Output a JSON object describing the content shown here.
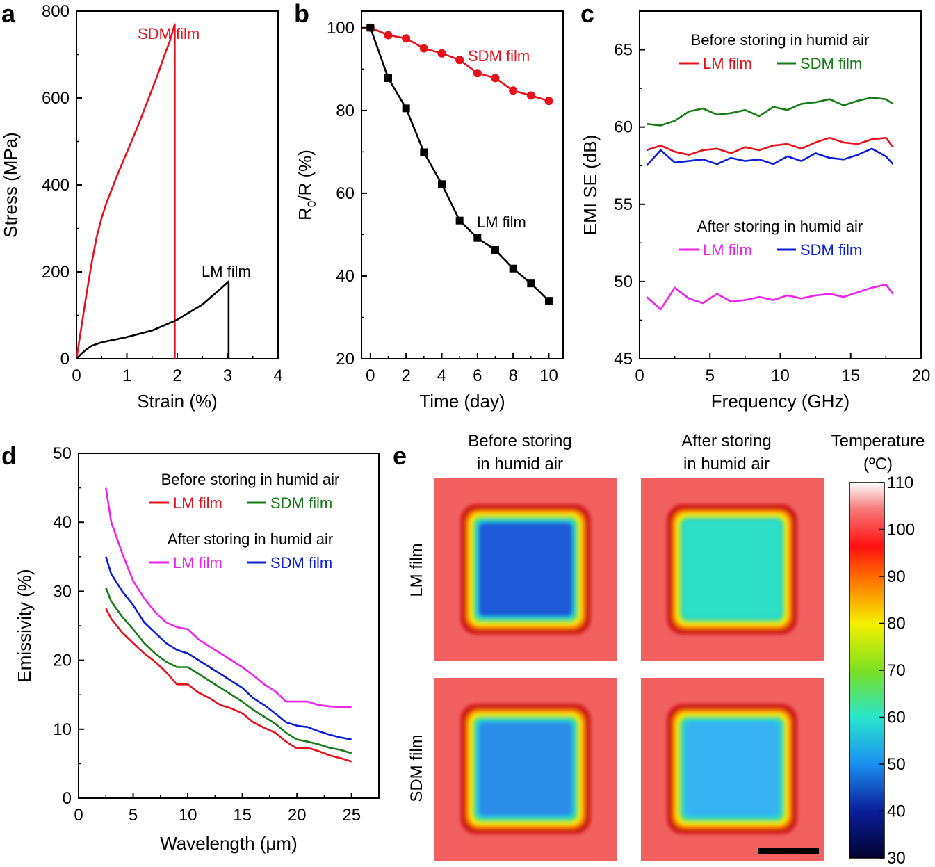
{
  "panel_letters": {
    "a": "a",
    "b": "b",
    "c": "c",
    "d": "d",
    "e": "e"
  },
  "colors": {
    "red": "#e8101a",
    "black": "#000000",
    "green": "#177a17",
    "blue": "#0b1fd6",
    "magenta": "#ee22ee"
  },
  "chart_data": [
    {
      "panel": "a",
      "type": "line",
      "xlabel": "Strain (%)",
      "ylabel": "Stress (MPa)",
      "xlim": [
        0,
        4
      ],
      "ylim": [
        0,
        800
      ],
      "xticks": [
        0,
        1,
        2,
        3,
        4
      ],
      "yticks": [
        0,
        200,
        400,
        600,
        800
      ],
      "grid": false,
      "series": [
        {
          "name": "SDM film",
          "color": "#e8101a",
          "x": [
            0,
            0.1,
            0.2,
            0.3,
            0.4,
            0.5,
            0.6,
            0.8,
            1.0,
            1.2,
            1.4,
            1.6,
            1.75,
            1.85,
            1.95,
            1.95
          ],
          "y": [
            0,
            75,
            150,
            220,
            280,
            325,
            360,
            420,
            475,
            530,
            590,
            650,
            700,
            730,
            770,
            0
          ]
        },
        {
          "name": "LM film",
          "color": "#000000",
          "x": [
            0,
            0.1,
            0.2,
            0.3,
            0.5,
            0.8,
            1.0,
            1.5,
            2.0,
            2.5,
            2.8,
            3.02,
            3.02
          ],
          "y": [
            0,
            12,
            22,
            30,
            38,
            45,
            50,
            65,
            90,
            125,
            155,
            178,
            0
          ]
        }
      ],
      "annotations": [
        "SDM film",
        "LM film"
      ]
    },
    {
      "panel": "b",
      "type": "line",
      "xlabel": "Time (day)",
      "ylabel_main": "R",
      "ylabel_sub": "0",
      "ylabel_rest": "/R (%)",
      "xlim": [
        -0.5,
        10.8
      ],
      "ylim": [
        20,
        104
      ],
      "xticks": [
        0,
        2,
        4,
        6,
        8,
        10
      ],
      "yticks": [
        20,
        40,
        60,
        80,
        100
      ],
      "grid": false,
      "series": [
        {
          "name": "SDM film",
          "color": "#e8101a",
          "marker": "circle",
          "x": [
            0,
            1,
            2,
            3,
            4,
            5,
            6,
            7,
            8,
            9,
            10
          ],
          "y": [
            100,
            98.2,
            97.4,
            95.0,
            93.8,
            92.2,
            89.0,
            87.8,
            84.8,
            83.6,
            82.3
          ]
        },
        {
          "name": "LM film",
          "color": "#000000",
          "marker": "square",
          "x": [
            0,
            1,
            2,
            3,
            4,
            5,
            6,
            7,
            8,
            9,
            10
          ],
          "y": [
            100,
            87.8,
            80.5,
            69.9,
            62.2,
            53.4,
            49.2,
            46.3,
            41.8,
            38.2,
            34.0
          ]
        }
      ],
      "annotations": [
        "SDM film",
        "LM film"
      ]
    },
    {
      "panel": "c",
      "type": "line",
      "xlabel": "Frequency (GHz)",
      "ylabel": "EMI SE (dB)",
      "xlim": [
        0,
        20
      ],
      "ylim": [
        45,
        67.5
      ],
      "xticks": [
        0,
        5,
        10,
        15,
        20
      ],
      "yticks": [
        45,
        50,
        55,
        60,
        65
      ],
      "grid": false,
      "legend_groups": [
        {
          "title": "Before storing in humid air",
          "entries": [
            {
              "label": "LM film",
              "color": "#e8101a"
            },
            {
              "label": "SDM film",
              "color": "#177a17"
            }
          ]
        },
        {
          "title": "After storing in humid air",
          "entries": [
            {
              "label": "LM film",
              "color": "#ee22ee"
            },
            {
              "label": "SDM film",
              "color": "#0b1fd6"
            }
          ]
        }
      ],
      "series": [
        {
          "name": "LM film (before)",
          "color": "#e8101a",
          "x": [
            0.5,
            1.5,
            2.5,
            3.5,
            4.5,
            5.5,
            6.5,
            7.5,
            8.5,
            9.5,
            10.5,
            11.5,
            12.5,
            13.5,
            14.5,
            15.5,
            16.5,
            17.5,
            18
          ],
          "y": [
            58.5,
            58.8,
            58.4,
            58.2,
            58.5,
            58.6,
            58.3,
            58.7,
            58.5,
            58.8,
            58.9,
            58.6,
            59.0,
            59.3,
            59.0,
            58.9,
            59.2,
            59.3,
            58.7
          ]
        },
        {
          "name": "SDM film (before)",
          "color": "#177a17",
          "x": [
            0.5,
            1.5,
            2.5,
            3.5,
            4.5,
            5.5,
            6.5,
            7.5,
            8.5,
            9.5,
            10.5,
            11.5,
            12.5,
            13.5,
            14.5,
            15.5,
            16.5,
            17.5,
            18
          ],
          "y": [
            60.2,
            60.1,
            60.4,
            61.0,
            61.2,
            60.8,
            60.9,
            61.1,
            60.7,
            61.3,
            61.1,
            61.5,
            61.6,
            61.8,
            61.4,
            61.7,
            61.9,
            61.8,
            61.5
          ]
        },
        {
          "name": "SDM film (after)",
          "color": "#0b1fd6",
          "x": [
            0.5,
            1.5,
            2.5,
            3.5,
            4.5,
            5.5,
            6.5,
            7.5,
            8.5,
            9.5,
            10.5,
            11.5,
            12.5,
            13.5,
            14.5,
            15.5,
            16.5,
            17.5,
            18
          ],
          "y": [
            57.5,
            58.5,
            57.7,
            57.8,
            57.9,
            57.6,
            58.0,
            57.8,
            57.9,
            57.6,
            58.1,
            57.8,
            58.3,
            58.0,
            57.9,
            58.2,
            58.6,
            58.1,
            57.6
          ]
        },
        {
          "name": "LM film (after)",
          "color": "#ee22ee",
          "x": [
            0.5,
            1.5,
            2.5,
            3.5,
            4.5,
            5.5,
            6.5,
            7.5,
            8.5,
            9.5,
            10.5,
            11.5,
            12.5,
            13.5,
            14.5,
            15.5,
            16.5,
            17.5,
            18
          ],
          "y": [
            49.0,
            48.2,
            49.6,
            48.9,
            48.6,
            49.2,
            48.7,
            48.8,
            49.0,
            48.8,
            49.1,
            48.9,
            49.1,
            49.2,
            49.0,
            49.3,
            49.6,
            49.8,
            49.2
          ]
        }
      ]
    },
    {
      "panel": "d",
      "type": "line",
      "xlabel": "Wavelength (μm)",
      "ylabel": "Emissivity (%)",
      "xlim": [
        0,
        27.5
      ],
      "ylim": [
        0,
        50
      ],
      "xticks": [
        0,
        5,
        10,
        15,
        20,
        25
      ],
      "yticks": [
        0,
        10,
        20,
        30,
        40,
        50
      ],
      "grid": false,
      "legend_groups": [
        {
          "title": "Before storing in humid air",
          "entries": [
            {
              "label": "LM film",
              "color": "#e8101a"
            },
            {
              "label": "SDM film",
              "color": "#177a17"
            }
          ]
        },
        {
          "title": "After storing in humid air",
          "entries": [
            {
              "label": "LM film",
              "color": "#ee22ee"
            },
            {
              "label": "SDM film",
              "color": "#0b1fd6"
            }
          ]
        }
      ],
      "series": [
        {
          "name": "LM film (after)",
          "color": "#ee22ee",
          "x": [
            2.5,
            3,
            4,
            5,
            6,
            7,
            8,
            9,
            10,
            11,
            12,
            13,
            14,
            15,
            16,
            17,
            18,
            19,
            20,
            21,
            22,
            23,
            24,
            25
          ],
          "y": [
            45,
            40,
            35.5,
            31.5,
            29,
            27,
            25.5,
            24.8,
            24.5,
            23,
            22,
            21,
            20,
            19,
            17.8,
            16.5,
            15.5,
            14,
            14,
            14,
            13.5,
            13.3,
            13.2,
            13.2
          ]
        },
        {
          "name": "SDM film (after)",
          "color": "#0b1fd6",
          "x": [
            2.5,
            3,
            4,
            5,
            6,
            7,
            8,
            9,
            10,
            11,
            12,
            13,
            14,
            15,
            16,
            17,
            18,
            19,
            20,
            21,
            22,
            23,
            24,
            25
          ],
          "y": [
            35,
            32.5,
            30,
            28,
            25.5,
            24,
            22.5,
            21.5,
            21,
            20,
            19,
            18,
            17,
            16,
            14.5,
            13.5,
            12.3,
            11,
            10.5,
            10.3,
            9.7,
            9.2,
            8.8,
            8.5
          ]
        },
        {
          "name": "SDM film (before)",
          "color": "#177a17",
          "x": [
            2.5,
            3,
            4,
            5,
            6,
            7,
            8,
            9,
            10,
            11,
            12,
            13,
            14,
            15,
            16,
            17,
            18,
            19,
            20,
            21,
            22,
            23,
            24,
            25
          ],
          "y": [
            30.5,
            28.5,
            26.3,
            24.5,
            22.5,
            21,
            19.8,
            19,
            19,
            18,
            17,
            16,
            15,
            14,
            12.8,
            11.8,
            10.8,
            9.5,
            8.5,
            8.2,
            7.8,
            7.3,
            7,
            6.5
          ]
        },
        {
          "name": "LM film (before)",
          "color": "#e8101a",
          "x": [
            2.5,
            3,
            4,
            5,
            6,
            7,
            8,
            9,
            10,
            11,
            12,
            13,
            14,
            15,
            16,
            17,
            18,
            19,
            20,
            21,
            22,
            23,
            24,
            25
          ],
          "y": [
            27.5,
            26,
            24,
            22.5,
            21,
            19.8,
            18.3,
            16.5,
            16.5,
            15.3,
            14.5,
            13.5,
            13,
            12.3,
            11,
            10.2,
            9.5,
            8.2,
            7.2,
            7.3,
            6.8,
            6.2,
            5.8,
            5.3
          ]
        }
      ]
    },
    {
      "panel": "e",
      "type": "heatmap",
      "column_titles": [
        {
          "line1": "Before storing",
          "line2": "in humid air"
        },
        {
          "line1": "After storing",
          "line2": "in humid air"
        }
      ],
      "row_labels": [
        "LM film",
        "SDM film"
      ],
      "colorbar": {
        "title_line1": "Temperature",
        "title_line2": "(ºC)",
        "min": 30,
        "max": 110,
        "ticks": [
          30,
          40,
          50,
          60,
          70,
          80,
          90,
          100,
          110
        ]
      },
      "tiles": [
        {
          "row": "LM film",
          "column": "Before storing in humid air",
          "center_color": "#1a5ad8"
        },
        {
          "row": "LM film",
          "column": "After storing in humid air",
          "center_color": "#2de0c8"
        },
        {
          "row": "SDM film",
          "column": "Before storing in humid air",
          "center_color": "#2a8ee8"
        },
        {
          "row": "SDM film",
          "column": "After storing in humid air",
          "center_color": "#36b2f2"
        }
      ],
      "background_color": "#f26060",
      "scale_bar": true
    }
  ]
}
